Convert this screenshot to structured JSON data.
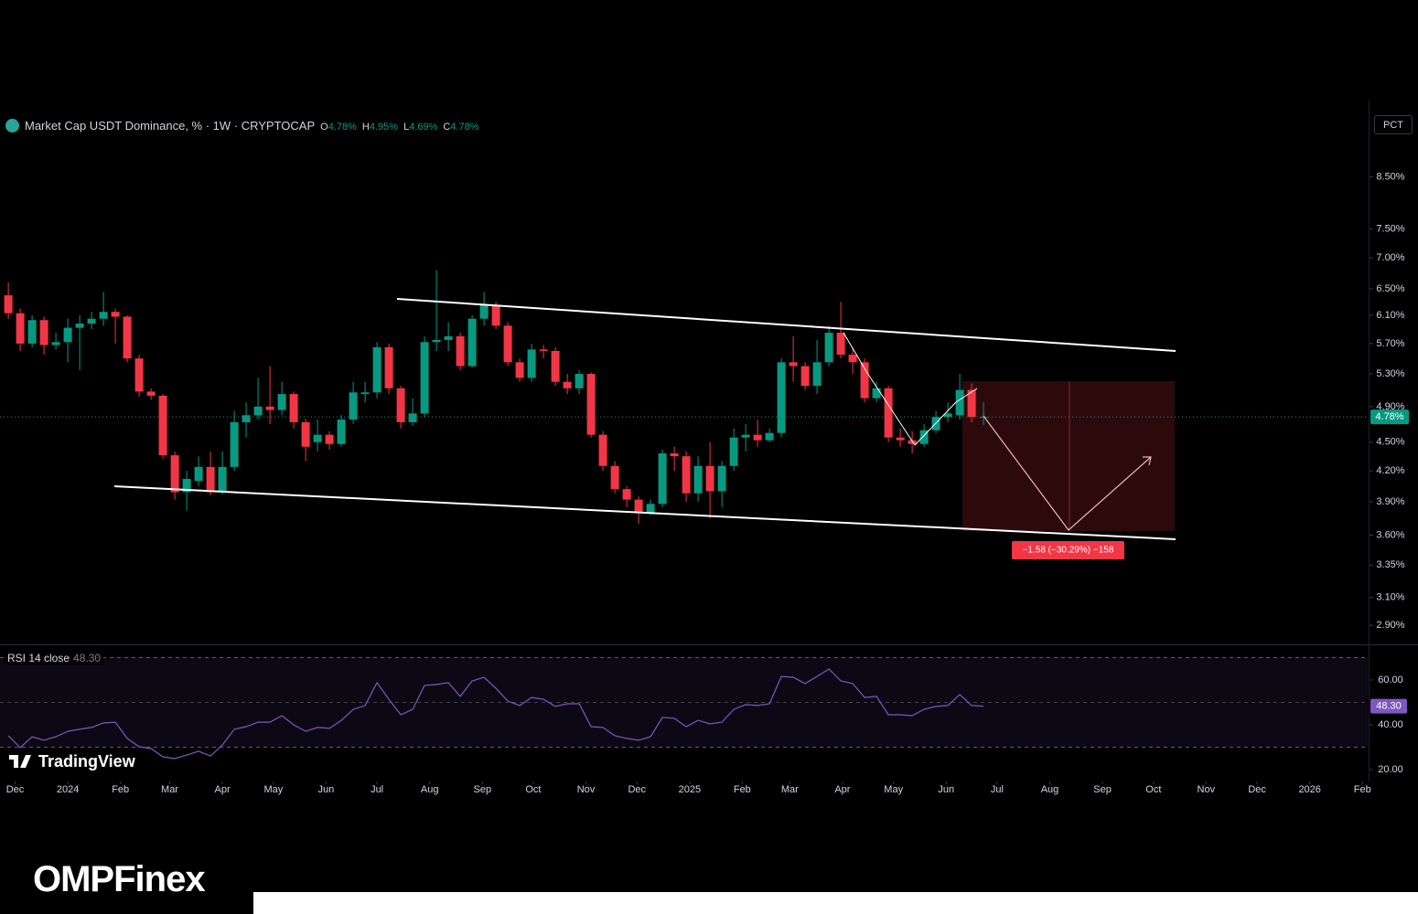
{
  "header": {
    "symbol": "Market Cap USDT Dominance, % · 1W · CRYPTOCAP",
    "ohlc": [
      {
        "key": "O",
        "value": "4.78%"
      },
      {
        "key": "H",
        "value": "4.95%"
      },
      {
        "key": "L",
        "value": "4.69%"
      },
      {
        "key": "C",
        "value": "4.78%"
      }
    ]
  },
  "scale_button": "PCT",
  "branding": {
    "watermark": "TradingView",
    "logo": "OMPFinex"
  },
  "chart_data": [
    {
      "type": "candlestick",
      "log_scale": true,
      "up_color": "#089981",
      "down_color": "#f23645",
      "open": [
        6.4,
        6.13,
        5.7,
        6.03,
        5.68,
        5.72,
        5.92,
        5.98,
        6.05,
        6.15,
        6.08,
        5.5,
        5.08,
        5.03,
        4.36,
        3.99,
        4.1,
        4.24,
        3.99,
        4.24,
        4.72,
        4.8,
        4.9,
        4.86,
        5.05,
        4.72,
        4.5,
        4.58,
        4.48,
        4.75,
        5.05,
        5.07,
        5.65,
        5.12,
        4.72,
        4.82,
        5.72,
        5.75,
        5.8,
        5.4,
        6.05,
        6.25,
        5.95,
        5.45,
        5.25,
        5.62,
        5.6,
        5.2,
        5.12,
        5.3,
        4.58,
        4.25,
        4.02,
        3.92,
        3.8,
        3.88,
        4.38,
        4.35,
        3.98,
        4.25,
        4.0,
        4.25,
        4.55,
        4.58,
        4.52,
        4.6,
        5.45,
        5.4,
        5.15,
        5.45,
        5.85,
        5.55,
        5.45,
        5.0,
        5.12,
        4.55,
        4.52,
        4.48,
        4.63,
        4.78,
        4.8,
        5.1,
        4.78
      ],
      "high": [
        6.6,
        6.2,
        6.1,
        6.08,
        5.85,
        6.05,
        6.1,
        6.15,
        6.45,
        6.2,
        6.1,
        5.55,
        5.12,
        5.05,
        4.4,
        4.2,
        4.35,
        4.4,
        4.4,
        4.85,
        4.95,
        5.25,
        5.4,
        5.2,
        5.08,
        4.76,
        4.75,
        4.62,
        4.8,
        5.2,
        5.2,
        5.72,
        5.7,
        5.15,
        5.0,
        5.8,
        6.8,
        6.0,
        5.85,
        6.1,
        6.45,
        6.3,
        6.0,
        5.5,
        5.7,
        5.68,
        5.65,
        5.3,
        5.35,
        5.32,
        4.62,
        4.3,
        4.05,
        3.95,
        3.92,
        4.42,
        4.45,
        4.4,
        4.35,
        4.5,
        4.3,
        4.65,
        4.7,
        4.75,
        4.65,
        5.5,
        5.8,
        5.45,
        5.75,
        5.95,
        6.3,
        5.65,
        5.5,
        5.2,
        5.15,
        4.65,
        4.62,
        4.7,
        4.85,
        4.95,
        5.3,
        5.18,
        4.95
      ],
      "low": [
        6.05,
        5.6,
        5.65,
        5.55,
        5.62,
        5.45,
        5.35,
        5.9,
        5.95,
        5.7,
        5.45,
        5.02,
        4.98,
        4.32,
        3.92,
        3.82,
        4.05,
        3.96,
        3.97,
        4.2,
        4.55,
        4.75,
        4.7,
        4.8,
        4.65,
        4.3,
        4.4,
        4.42,
        4.45,
        4.7,
        4.95,
        5.0,
        5.05,
        4.65,
        4.68,
        4.78,
        5.6,
        5.6,
        5.35,
        5.38,
        5.95,
        5.9,
        5.4,
        5.2,
        5.2,
        5.5,
        5.15,
        5.05,
        5.05,
        4.55,
        4.2,
        3.98,
        3.85,
        3.7,
        3.78,
        3.85,
        4.2,
        3.9,
        3.9,
        3.75,
        3.85,
        4.2,
        4.4,
        4.45,
        4.5,
        4.55,
        5.2,
        5.1,
        5.05,
        5.4,
        5.5,
        5.3,
        4.95,
        4.95,
        4.5,
        4.45,
        4.38,
        4.45,
        4.6,
        4.72,
        4.75,
        4.72,
        4.69
      ],
      "close": [
        6.13,
        5.7,
        6.03,
        5.68,
        5.72,
        5.92,
        5.98,
        6.05,
        6.15,
        6.08,
        5.5,
        5.08,
        5.03,
        4.36,
        3.99,
        4.12,
        4.24,
        3.99,
        4.24,
        4.72,
        4.8,
        4.9,
        4.86,
        5.05,
        4.72,
        4.45,
        4.58,
        4.48,
        4.75,
        5.07,
        5.07,
        5.65,
        5.12,
        4.72,
        4.82,
        5.72,
        5.75,
        5.8,
        5.4,
        6.05,
        6.25,
        5.95,
        5.45,
        5.25,
        5.62,
        5.6,
        5.2,
        5.12,
        5.3,
        4.58,
        4.25,
        4.02,
        3.92,
        3.8,
        3.88,
        4.38,
        4.35,
        3.98,
        4.25,
        4.0,
        4.25,
        4.55,
        4.58,
        4.52,
        4.6,
        5.45,
        5.4,
        5.15,
        5.45,
        5.85,
        5.55,
        5.45,
        5.0,
        5.12,
        4.55,
        4.52,
        4.48,
        4.63,
        4.78,
        4.82,
        5.1,
        4.78,
        4.78
      ],
      "ylim": [
        2.77,
        10.1
      ],
      "yticks": [
        {
          "value": 8.5,
          "label": "8.50%"
        },
        {
          "value": 7.5,
          "label": "7.50%"
        },
        {
          "value": 7.0,
          "label": "7.00%"
        },
        {
          "value": 6.5,
          "label": "6.50%"
        },
        {
          "value": 6.1,
          "label": "6.10%"
        },
        {
          "value": 5.7,
          "label": "5.70%"
        },
        {
          "value": 5.3,
          "label": "5.30%"
        },
        {
          "value": 4.9,
          "label": "4.90%"
        },
        {
          "value": 4.5,
          "label": "4.50%"
        },
        {
          "value": 4.2,
          "label": "4.20%"
        },
        {
          "value": 3.9,
          "label": "3.90%"
        },
        {
          "value": 3.6,
          "label": "3.60%"
        },
        {
          "value": 3.35,
          "label": "3.35%"
        },
        {
          "value": 3.1,
          "label": "3.10%"
        },
        {
          "value": 2.9,
          "label": "2.90%"
        }
      ],
      "xlim": [
        -0.7,
        114.3
      ],
      "xticks": [
        {
          "value": 0.57,
          "label": "Dec"
        },
        {
          "value": 5.0,
          "label": "2024"
        },
        {
          "value": 9.43,
          "label": "Feb"
        },
        {
          "value": 13.57,
          "label": "Mar"
        },
        {
          "value": 18.0,
          "label": "Apr"
        },
        {
          "value": 22.29,
          "label": "May"
        },
        {
          "value": 26.71,
          "label": "Jun"
        },
        {
          "value": 31.0,
          "label": "Jul"
        },
        {
          "value": 35.43,
          "label": "Aug"
        },
        {
          "value": 39.86,
          "label": "Sep"
        },
        {
          "value": 44.14,
          "label": "Oct"
        },
        {
          "value": 48.57,
          "label": "Nov"
        },
        {
          "value": 52.86,
          "label": "Dec"
        },
        {
          "value": 57.29,
          "label": "2025"
        },
        {
          "value": 61.71,
          "label": "Feb"
        },
        {
          "value": 65.71,
          "label": "Mar"
        },
        {
          "value": 70.14,
          "label": "Apr"
        },
        {
          "value": 74.43,
          "label": "May"
        },
        {
          "value": 78.86,
          "label": "Jun"
        },
        {
          "value": 83.14,
          "label": "Jul"
        },
        {
          "value": 87.57,
          "label": "Aug"
        },
        {
          "value": 92.0,
          "label": "Sep"
        },
        {
          "value": 96.29,
          "label": "Oct"
        },
        {
          "value": 100.71,
          "label": "Nov"
        },
        {
          "value": 105.0,
          "label": "Dec"
        },
        {
          "value": 109.43,
          "label": "2026"
        },
        {
          "value": 113.86,
          "label": "Feb"
        }
      ],
      "last_price_label": "4.78%",
      "measure_label": "−1.58 (−30.29%) −158"
    },
    {
      "type": "line",
      "title": "RSI 14 close",
      "color": "#7e57c2",
      "last_label": "48.30",
      "values": [
        35.1,
        29.8,
        34.7,
        33.1,
        34.7,
        37.1,
        38.0,
        38.8,
        40.8,
        41.2,
        33.9,
        30.2,
        29.4,
        25.7,
        24.9,
        26.5,
        28.2,
        26.1,
        31.0,
        38.0,
        39.2,
        41.2,
        41.2,
        44.1,
        40.0,
        37.1,
        38.8,
        38.4,
        42.0,
        46.9,
        48.6,
        58.8,
        51.4,
        44.5,
        46.9,
        57.6,
        58.0,
        58.8,
        52.7,
        59.6,
        61.2,
        56.3,
        50.6,
        48.6,
        52.2,
        51.4,
        48.2,
        49.4,
        49.4,
        39.2,
        38.8,
        35.1,
        33.9,
        33.1,
        34.7,
        43.3,
        42.9,
        39.2,
        42.0,
        40.4,
        41.2,
        46.9,
        49.0,
        48.6,
        49.4,
        61.6,
        61.2,
        58.4,
        61.6,
        64.9,
        59.6,
        58.4,
        52.2,
        52.7,
        44.5,
        44.5,
        44.1,
        46.9,
        48.2,
        48.6,
        53.5,
        48.6,
        48.3
      ],
      "ylim": [
        14.7,
        75.5
      ],
      "yticks": [
        {
          "value": 60,
          "label": "60.00"
        },
        {
          "value": 40,
          "label": "40.00"
        },
        {
          "value": 20,
          "label": "20.00"
        }
      ],
      "bands": [
        30,
        70
      ],
      "midline": 50
    }
  ]
}
